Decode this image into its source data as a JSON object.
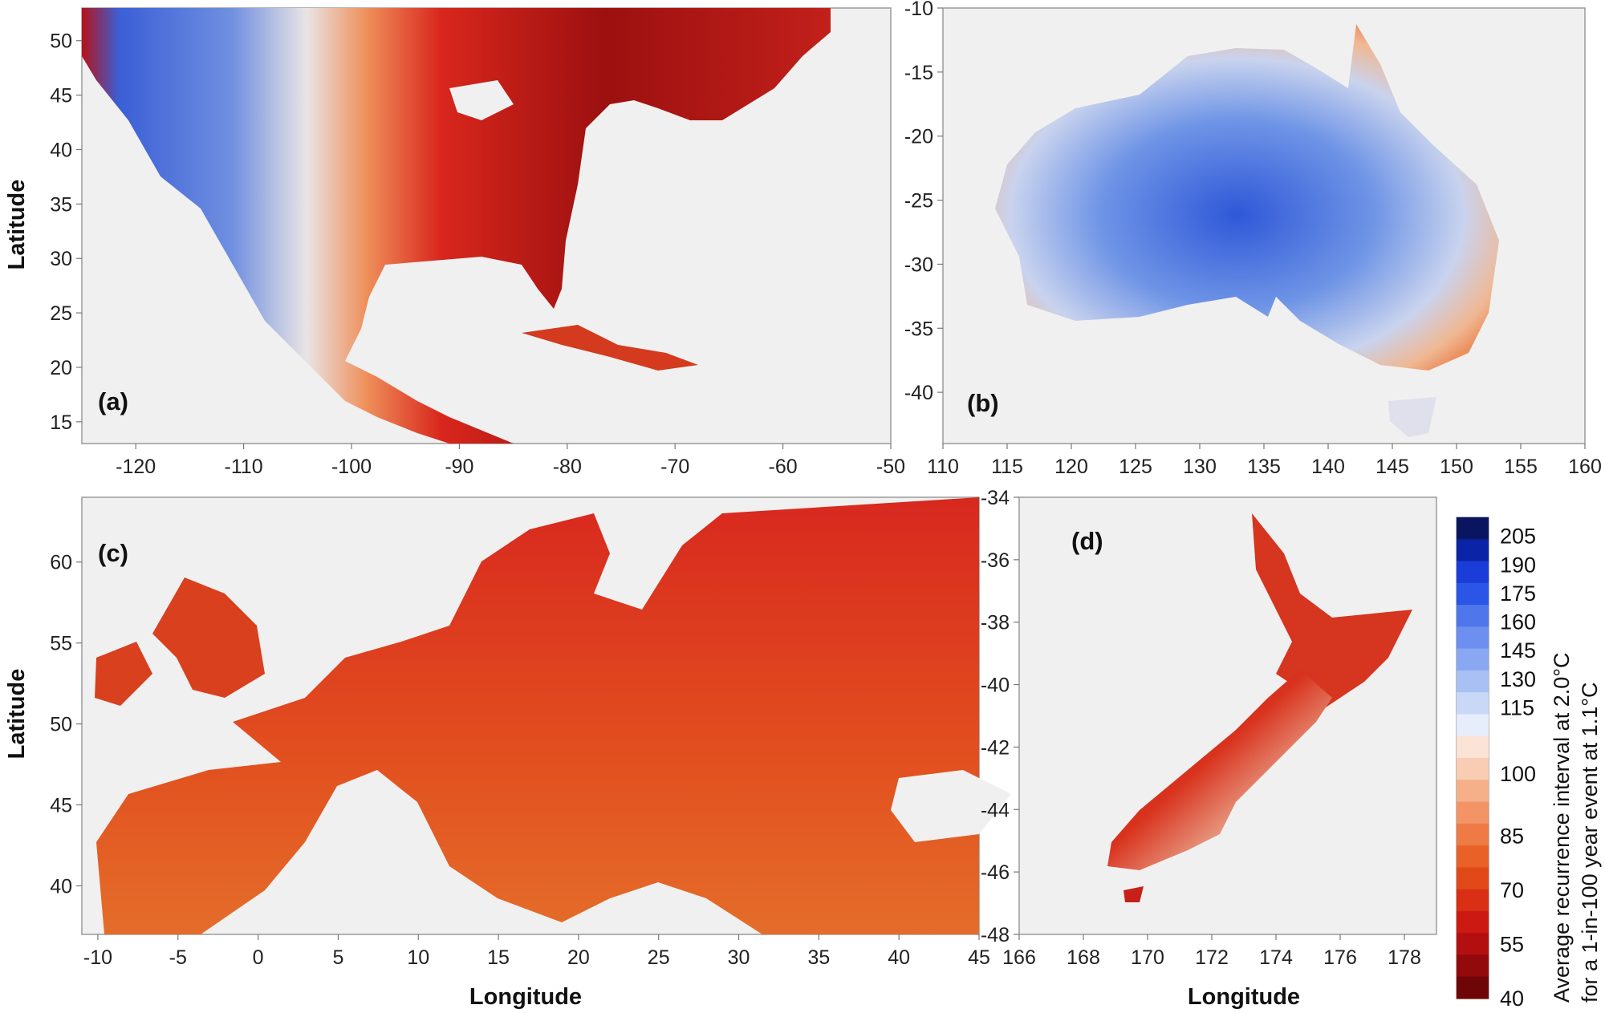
{
  "y_axis_label": "Latitude",
  "x_axis_label": "Longitude",
  "colorbar": {
    "title_line1": "Average recurrence interval at 2.0°C",
    "title_line2": "for a 1-in-100 year event at 1.1°C",
    "ticks": [
      "205",
      "190",
      "175",
      "160",
      "145",
      "130",
      "115",
      "100",
      "85",
      "70",
      "55",
      "40"
    ],
    "min": 40,
    "max": 215
  },
  "panels": [
    {
      "id": "a",
      "label": "(a)",
      "xrange": [
        -125,
        -50
      ],
      "yrange": [
        13,
        53
      ],
      "xticks": [
        "-120",
        "-110",
        "-100",
        "-90",
        "-80",
        "-70",
        "-60",
        "-50"
      ],
      "yticks": [
        "50",
        "45",
        "40",
        "35",
        "30",
        "25",
        "20",
        "15"
      ]
    },
    {
      "id": "b",
      "label": "(b)",
      "xrange": [
        110,
        160
      ],
      "yrange": [
        -44,
        -10
      ],
      "xticks": [
        "110",
        "115",
        "120",
        "125",
        "130",
        "135",
        "140",
        "145",
        "150",
        "155",
        "160"
      ],
      "yticks": [
        "-10",
        "-15",
        "-20",
        "-25",
        "-30",
        "-35",
        "-40"
      ]
    },
    {
      "id": "c",
      "label": "(c)",
      "xrange": [
        -11,
        45
      ],
      "yrange": [
        37,
        64
      ],
      "xticks": [
        "-10",
        "-5",
        "0",
        "5",
        "10",
        "15",
        "20",
        "25",
        "30",
        "35",
        "40",
        "45"
      ],
      "yticks": [
        "60",
        "55",
        "50",
        "45",
        "40"
      ]
    },
    {
      "id": "d",
      "label": "(d)",
      "xrange": [
        166,
        179
      ],
      "yrange": [
        -48,
        -34
      ],
      "xticks": [
        "166",
        "168",
        "170",
        "172",
        "174",
        "176",
        "178"
      ],
      "yticks": [
        "-34",
        "-36",
        "-38",
        "-40",
        "-42",
        "-44",
        "-46",
        "-48"
      ]
    }
  ]
}
